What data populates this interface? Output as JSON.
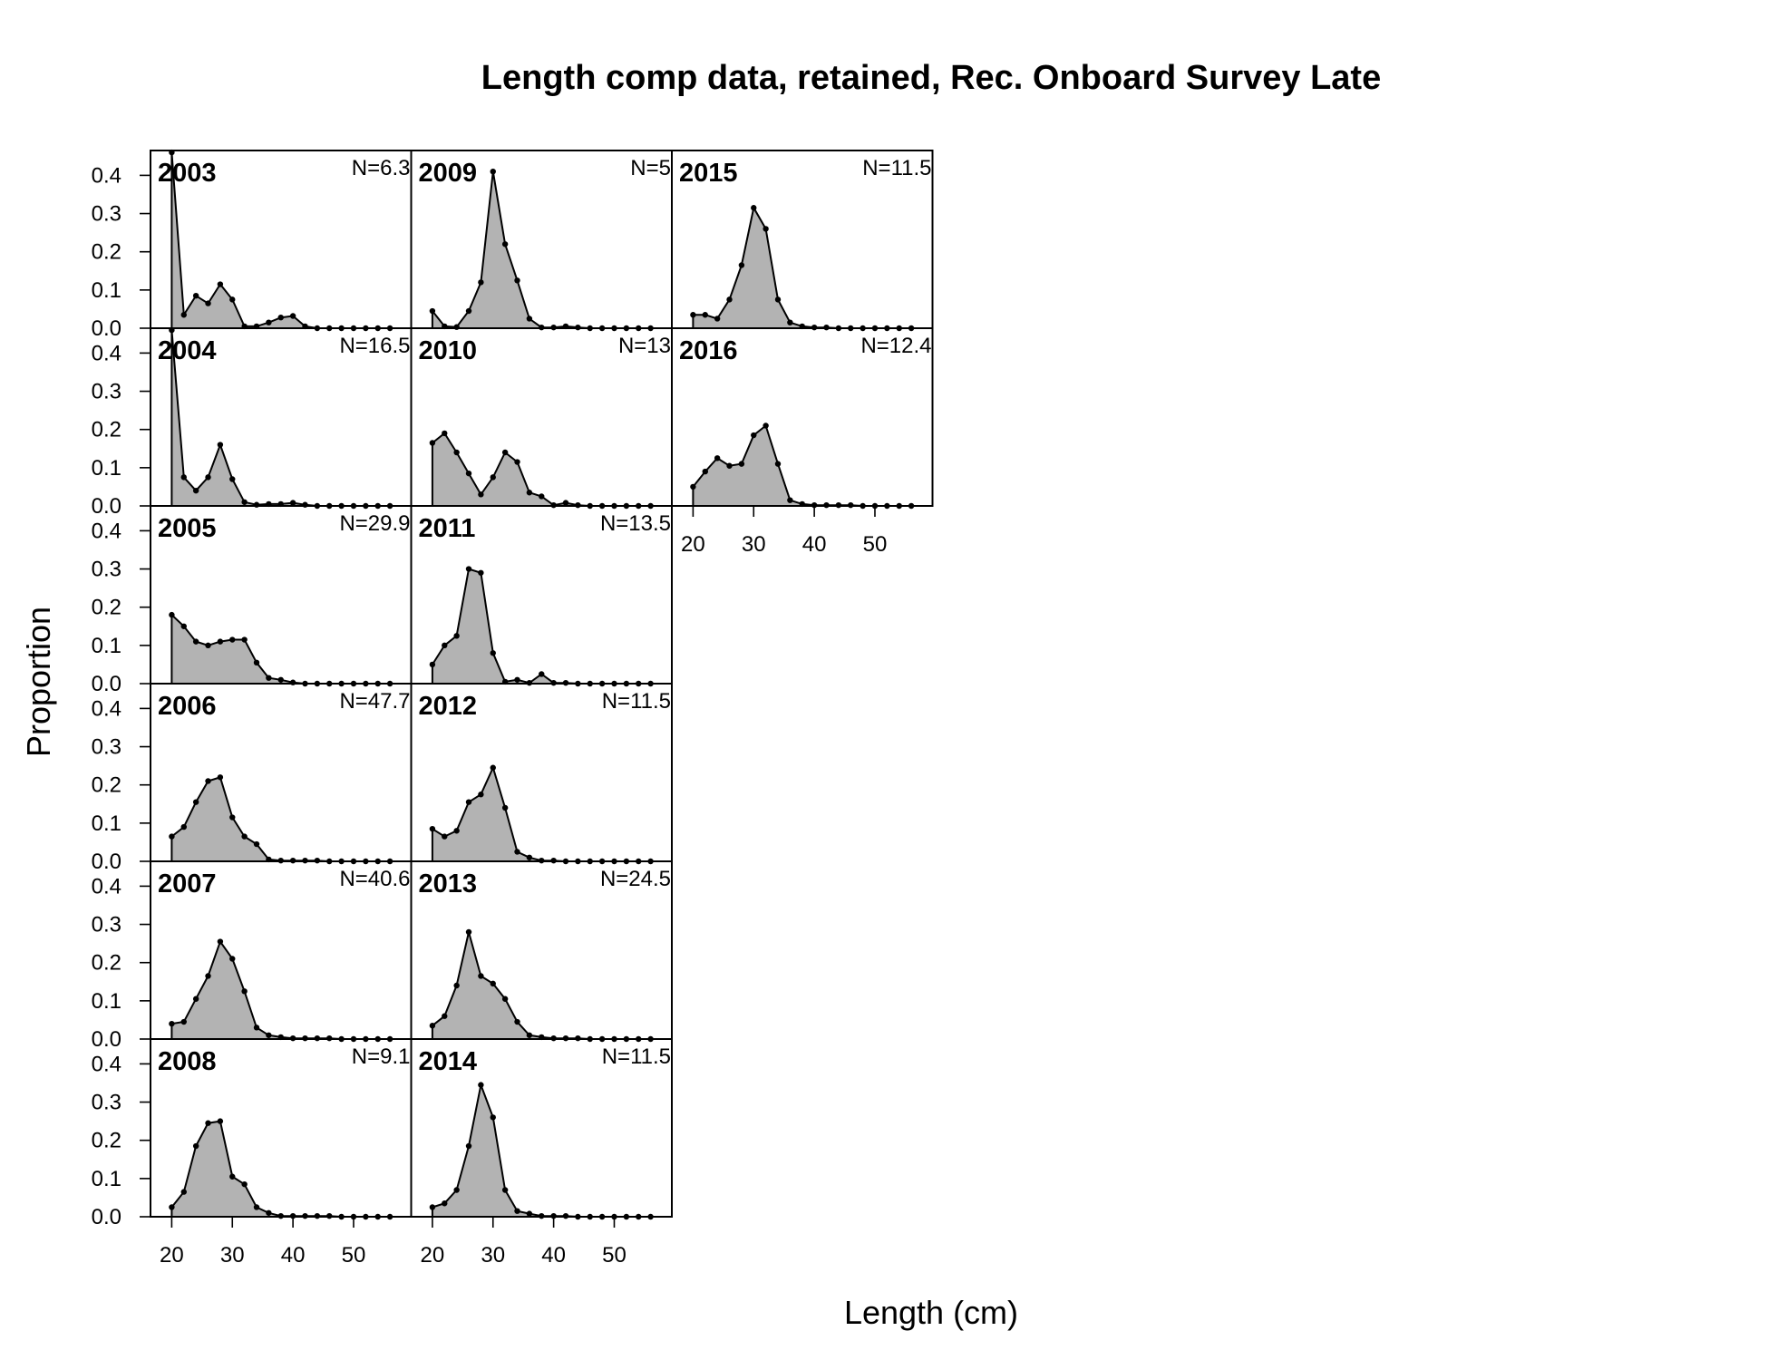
{
  "chart_data": {
    "type": "area",
    "title": "Length comp data, retained, Rec. Onboard Survey Late",
    "xlabel": "Length (cm)",
    "ylabel": "Proportion",
    "xlim": [
      16.5,
      59.5
    ],
    "ylim": [
      0,
      0.465
    ],
    "x_ticks": [
      20,
      30,
      40,
      50
    ],
    "y_ticks": [
      0.0,
      0.1,
      0.2,
      0.3,
      0.4
    ],
    "grid": false,
    "fill_color": "#b3b3b3",
    "line_color": "#000000",
    "x": [
      20,
      22,
      24,
      26,
      28,
      30,
      32,
      34,
      36,
      38,
      40,
      42,
      44,
      46,
      48,
      50,
      52,
      54,
      56
    ],
    "panels": [
      {
        "year": "2003",
        "n_label": "N=6.3",
        "values": [
          0.46,
          0.035,
          0.085,
          0.065,
          0.115,
          0.075,
          0.005,
          0.005,
          0.015,
          0.028,
          0.032,
          0.005,
          0,
          0,
          0,
          0,
          0,
          0,
          0
        ]
      },
      {
        "year": "2004",
        "n_label": "N=16.5",
        "values": [
          0.46,
          0.075,
          0.04,
          0.075,
          0.16,
          0.07,
          0.01,
          0.003,
          0.005,
          0.005,
          0.008,
          0.003,
          0,
          0,
          0,
          0,
          0,
          0,
          0
        ]
      },
      {
        "year": "2005",
        "n_label": "N=29.9",
        "values": [
          0.18,
          0.15,
          0.11,
          0.1,
          0.11,
          0.115,
          0.115,
          0.055,
          0.015,
          0.01,
          0.003,
          0,
          0,
          0,
          0,
          0,
          0,
          0,
          0
        ]
      },
      {
        "year": "2006",
        "n_label": "N=47.7",
        "values": [
          0.065,
          0.09,
          0.155,
          0.21,
          0.22,
          0.115,
          0.065,
          0.045,
          0.005,
          0.002,
          0.002,
          0.002,
          0.002,
          0,
          0,
          0,
          0,
          0,
          0
        ]
      },
      {
        "year": "2007",
        "n_label": "N=40.6",
        "values": [
          0.04,
          0.045,
          0.105,
          0.165,
          0.255,
          0.21,
          0.125,
          0.03,
          0.01,
          0.005,
          0.002,
          0.002,
          0.002,
          0.002,
          0,
          0,
          0,
          0,
          0
        ]
      },
      {
        "year": "2008",
        "n_label": "N=9.1",
        "values": [
          0.025,
          0.065,
          0.185,
          0.245,
          0.25,
          0.105,
          0.085,
          0.025,
          0.01,
          0.002,
          0.002,
          0.002,
          0.002,
          0.002,
          0,
          0,
          0,
          0,
          0
        ]
      },
      {
        "year": "2009",
        "n_label": "N=5",
        "values": [
          0.045,
          0.005,
          0.003,
          0.045,
          0.12,
          0.41,
          0.22,
          0.125,
          0.025,
          0.002,
          0.002,
          0.005,
          0.002,
          0,
          0,
          0,
          0,
          0,
          0
        ]
      },
      {
        "year": "2010",
        "n_label": "N=13",
        "values": [
          0.165,
          0.19,
          0.14,
          0.085,
          0.03,
          0.075,
          0.14,
          0.115,
          0.035,
          0.025,
          0.002,
          0.008,
          0.002,
          0,
          0,
          0,
          0,
          0,
          0
        ]
      },
      {
        "year": "2011",
        "n_label": "N=13.5",
        "values": [
          0.05,
          0.1,
          0.125,
          0.3,
          0.29,
          0.08,
          0.005,
          0.01,
          0.002,
          0.025,
          0.002,
          0.002,
          0,
          0,
          0,
          0,
          0,
          0,
          0
        ]
      },
      {
        "year": "2012",
        "n_label": "N=11.5",
        "values": [
          0.085,
          0.065,
          0.08,
          0.155,
          0.175,
          0.245,
          0.14,
          0.025,
          0.01,
          0.002,
          0.002,
          0,
          0,
          0,
          0,
          0,
          0,
          0,
          0
        ]
      },
      {
        "year": "2013",
        "n_label": "N=24.5",
        "values": [
          0.035,
          0.06,
          0.14,
          0.28,
          0.165,
          0.145,
          0.105,
          0.045,
          0.01,
          0.005,
          0.002,
          0.002,
          0.002,
          0,
          0,
          0,
          0,
          0,
          0
        ]
      },
      {
        "year": "2014",
        "n_label": "N=11.5",
        "values": [
          0.025,
          0.035,
          0.07,
          0.185,
          0.345,
          0.26,
          0.07,
          0.015,
          0.008,
          0.002,
          0.002,
          0.002,
          0,
          0,
          0,
          0,
          0,
          0,
          0
        ]
      },
      {
        "year": "2015",
        "n_label": "N=11.5",
        "values": [
          0.035,
          0.035,
          0.025,
          0.075,
          0.165,
          0.315,
          0.26,
          0.075,
          0.015,
          0.005,
          0.002,
          0.002,
          0,
          0,
          0,
          0,
          0,
          0,
          0
        ]
      },
      {
        "year": "2016",
        "n_label": "N=12.4",
        "values": [
          0.05,
          0.09,
          0.125,
          0.105,
          0.11,
          0.185,
          0.21,
          0.11,
          0.015,
          0.005,
          0.002,
          0.002,
          0.002,
          0.002,
          0,
          0,
          0,
          0,
          0
        ]
      }
    ]
  }
}
